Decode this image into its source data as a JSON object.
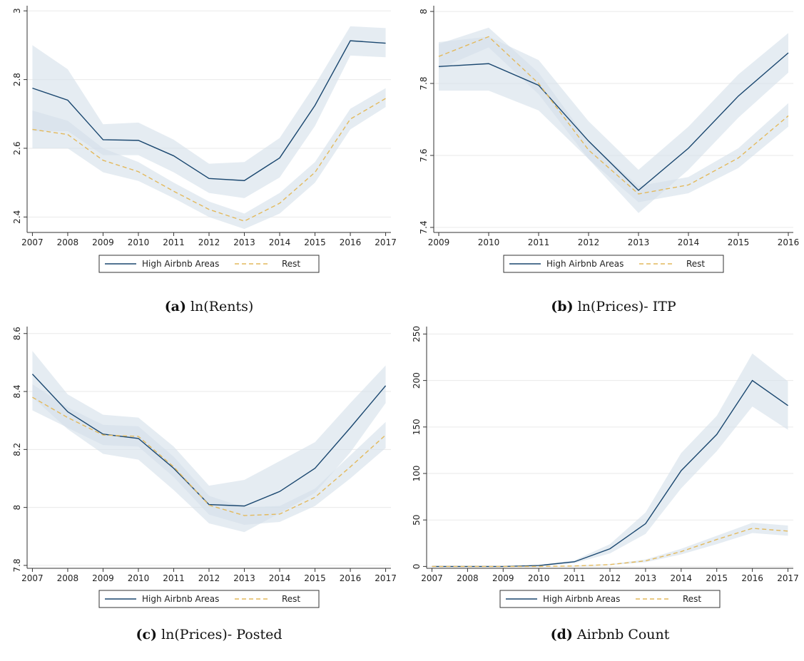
{
  "chart_data": [
    {
      "type": "line",
      "label": "(a)",
      "caption": "ln(Rents)",
      "x": [
        2007,
        2008,
        2009,
        2010,
        2011,
        2012,
        2013,
        2014,
        2015,
        2016,
        2017
      ],
      "xlim": [
        2006.85,
        2017.15
      ],
      "xticks": [
        2007,
        2008,
        2009,
        2010,
        2011,
        2012,
        2013,
        2014,
        2015,
        2016,
        2017
      ],
      "ylim": [
        2.355,
        3.015
      ],
      "yticks": [
        2.4,
        2.6,
        2.8,
        3
      ],
      "grid": true,
      "band_color": "#d3e0ea",
      "series": [
        {
          "name": "High Airbnb Areas",
          "color": "#1a476f",
          "dash": false,
          "values": [
            2.775,
            2.74,
            2.625,
            2.623,
            2.578,
            2.512,
            2.506,
            2.572,
            2.725,
            2.913,
            2.906
          ],
          "lower": [
            2.65,
            2.65,
            2.58,
            2.58,
            2.53,
            2.47,
            2.455,
            2.515,
            2.665,
            2.87,
            2.865
          ],
          "upper": [
            2.9,
            2.83,
            2.67,
            2.675,
            2.625,
            2.555,
            2.56,
            2.63,
            2.785,
            2.955,
            2.95
          ]
        },
        {
          "name": "Rest",
          "color": "#e3b95c",
          "dash": true,
          "values": [
            2.655,
            2.64,
            2.565,
            2.532,
            2.475,
            2.422,
            2.388,
            2.44,
            2.53,
            2.685,
            2.745
          ],
          "lower": [
            2.6,
            2.6,
            2.53,
            2.505,
            2.455,
            2.4,
            2.365,
            2.41,
            2.5,
            2.655,
            2.72
          ],
          "upper": [
            2.71,
            2.68,
            2.6,
            2.56,
            2.5,
            2.445,
            2.41,
            2.47,
            2.56,
            2.715,
            2.775
          ]
        }
      ]
    },
    {
      "type": "line",
      "label": "(b)",
      "caption": "ln(Prices)- ITP",
      "x": [
        2009,
        2010,
        2011,
        2012,
        2013,
        2014,
        2015,
        2016
      ],
      "xlim": [
        2008.9,
        2016.1
      ],
      "xticks": [
        2009,
        2010,
        2011,
        2012,
        2013,
        2014,
        2015,
        2016
      ],
      "ylim": [
        7.386,
        8.016
      ],
      "yticks": [
        7.4,
        7.6,
        7.8,
        8
      ],
      "grid": true,
      "band_color": "#d3e0ea",
      "series": [
        {
          "name": "High Airbnb Areas",
          "color": "#1a476f",
          "dash": false,
          "values": [
            7.847,
            7.855,
            7.795,
            7.64,
            7.503,
            7.62,
            7.765,
            7.885
          ],
          "lower": [
            7.78,
            7.78,
            7.725,
            7.59,
            7.44,
            7.56,
            7.705,
            7.83
          ],
          "upper": [
            7.915,
            7.93,
            7.865,
            7.695,
            7.56,
            7.68,
            7.825,
            7.94
          ]
        },
        {
          "name": "Rest",
          "color": "#e3b95c",
          "dash": true,
          "values": [
            7.875,
            7.93,
            7.8,
            7.615,
            7.493,
            7.518,
            7.593,
            7.71
          ],
          "lower": [
            7.84,
            7.9,
            7.77,
            7.59,
            7.47,
            7.495,
            7.565,
            7.68
          ],
          "upper": [
            7.91,
            7.955,
            7.83,
            7.64,
            7.515,
            7.54,
            7.62,
            7.745
          ]
        }
      ]
    },
    {
      "type": "line",
      "label": "(c)",
      "caption": "ln(Prices)- Posted",
      "x": [
        2007,
        2008,
        2009,
        2010,
        2011,
        2012,
        2013,
        2014,
        2015,
        2016,
        2017
      ],
      "xlim": [
        2006.85,
        2017.15
      ],
      "xticks": [
        2007,
        2008,
        2009,
        2010,
        2011,
        2012,
        2013,
        2014,
        2015,
        2016,
        2017
      ],
      "ylim": [
        7.79,
        8.624
      ],
      "yticks": [
        7.8,
        8,
        8.2,
        8.4,
        8.6
      ],
      "grid": true,
      "band_color": "#d3e0ea",
      "series": [
        {
          "name": "High Airbnb Areas",
          "color": "#1a476f",
          "dash": false,
          "values": [
            8.46,
            8.33,
            8.253,
            8.238,
            8.135,
            8.01,
            8.005,
            8.055,
            8.135,
            8.275,
            8.42
          ],
          "lower": [
            8.38,
            8.27,
            8.185,
            8.165,
            8.06,
            7.945,
            7.915,
            7.98,
            8.05,
            8.19,
            8.36
          ],
          "upper": [
            8.54,
            8.39,
            8.32,
            8.31,
            8.21,
            8.075,
            8.095,
            8.16,
            8.225,
            8.36,
            8.49
          ]
        },
        {
          "name": "Rest",
          "color": "#e3b95c",
          "dash": true,
          "values": [
            8.38,
            8.31,
            8.25,
            8.245,
            8.14,
            8.008,
            7.972,
            7.977,
            8.035,
            8.14,
            8.25
          ],
          "lower": [
            8.335,
            8.275,
            8.215,
            8.21,
            8.105,
            7.975,
            7.94,
            7.95,
            8.005,
            8.1,
            8.205
          ],
          "upper": [
            8.425,
            8.345,
            8.285,
            8.28,
            8.175,
            8.04,
            8.0,
            8.005,
            8.065,
            8.18,
            8.295
          ]
        }
      ]
    },
    {
      "type": "line",
      "label": "(d)",
      "caption": "Airbnb Count",
      "x": [
        2007,
        2008,
        2009,
        2010,
        2011,
        2012,
        2013,
        2014,
        2015,
        2016,
        2017
      ],
      "xlim": [
        2006.85,
        2017.15
      ],
      "xticks": [
        2007,
        2008,
        2009,
        2010,
        2011,
        2012,
        2013,
        2014,
        2015,
        2016,
        2017
      ],
      "ylim": [
        -2,
        258
      ],
      "yticks": [
        0,
        50,
        100,
        150,
        200,
        250
      ],
      "grid": true,
      "band_color": "#d3e0ea",
      "series": [
        {
          "name": "High Airbnb Areas",
          "color": "#1a476f",
          "dash": false,
          "values": [
            0,
            0,
            0,
            1,
            5,
            19,
            46,
            103,
            142,
            200,
            173
          ],
          "lower": [
            0,
            0,
            0,
            0,
            3.5,
            14,
            35,
            84,
            124,
            172,
            147
          ],
          "upper": [
            0,
            0,
            0,
            1.5,
            6.5,
            24,
            58,
            122,
            162,
            229,
            199
          ]
        },
        {
          "name": "Rest",
          "color": "#e3b95c",
          "dash": true,
          "values": [
            0,
            0,
            0,
            0,
            0.5,
            2,
            6,
            16,
            29,
            41,
            38
          ],
          "lower": [
            0,
            0,
            0,
            0,
            0,
            1.5,
            4.5,
            13,
            24,
            36,
            33
          ],
          "upper": [
            0,
            0,
            0,
            0,
            1,
            2.5,
            7.5,
            19,
            33,
            47,
            44
          ]
        }
      ]
    }
  ]
}
